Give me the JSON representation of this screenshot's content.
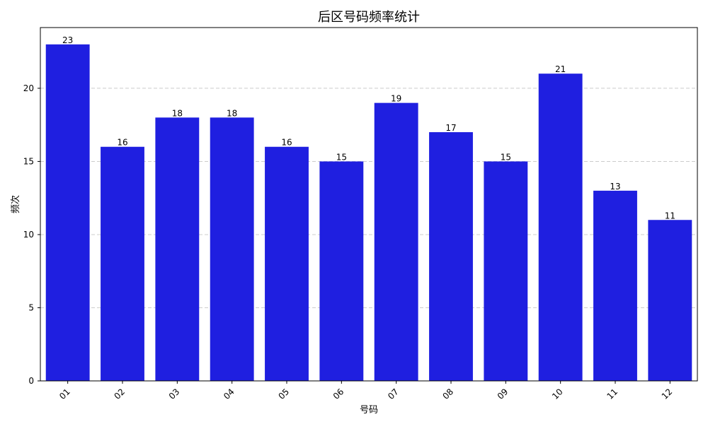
{
  "chart_data": {
    "type": "bar",
    "title": "后区号码频率统计",
    "xlabel": "号码",
    "ylabel": "频次",
    "categories": [
      "01",
      "02",
      "03",
      "04",
      "05",
      "06",
      "07",
      "08",
      "09",
      "10",
      "11",
      "12"
    ],
    "values": [
      23,
      16,
      18,
      18,
      16,
      15,
      19,
      17,
      15,
      21,
      13,
      11
    ],
    "ylim": [
      0,
      24.15
    ],
    "yticks": [
      0,
      5,
      10,
      15,
      20
    ],
    "grid": "y-dashed",
    "bar_color": "#1f1fe0",
    "grid_color": "#cccccc",
    "x_tick_rotation": 45
  }
}
